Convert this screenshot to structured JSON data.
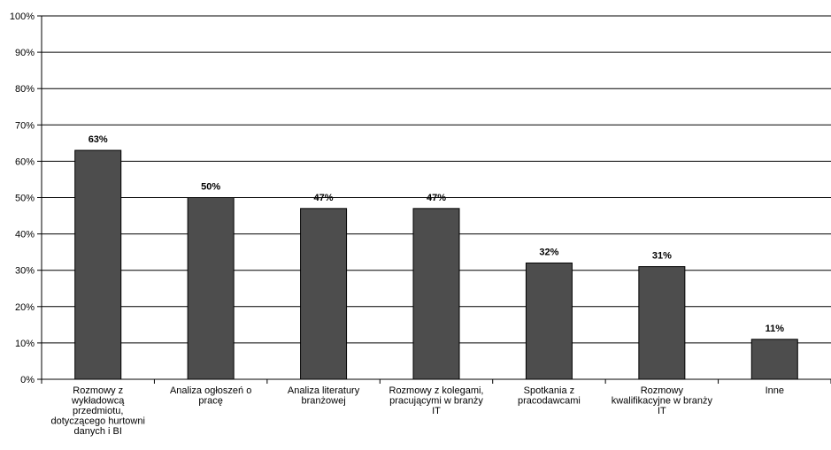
{
  "chart_data": {
    "type": "bar",
    "title": "",
    "xlabel": "",
    "ylabel": "",
    "ylim": [
      0,
      100
    ],
    "y_ticks": [
      "0%",
      "10%",
      "20%",
      "30%",
      "40%",
      "50%",
      "60%",
      "70%",
      "80%",
      "90%",
      "100%"
    ],
    "grid": true,
    "legend": "none",
    "bar_color": "#4d4d4d",
    "categories": [
      [
        "Rozmowy z",
        "wykładowcą",
        "przedmiotu,",
        "dotyczącego hurtowni",
        "danych i BI"
      ],
      [
        "Analiza ogłoszeń o",
        "pracę"
      ],
      [
        "Analiza literatury",
        "branżowej"
      ],
      [
        "Rozmowy z kolegami,",
        "pracującymi w branży",
        "IT"
      ],
      [
        "Spotkania z",
        "pracodawcami"
      ],
      [
        "Rozmowy",
        "kwalifikacyjne w branży",
        "IT"
      ],
      [
        "Inne"
      ]
    ],
    "values": [
      63,
      50,
      47,
      47,
      32,
      31,
      11
    ],
    "data_labels": [
      "63%",
      "50%",
      "47%",
      "47%",
      "32%",
      "31%",
      "11%"
    ]
  }
}
